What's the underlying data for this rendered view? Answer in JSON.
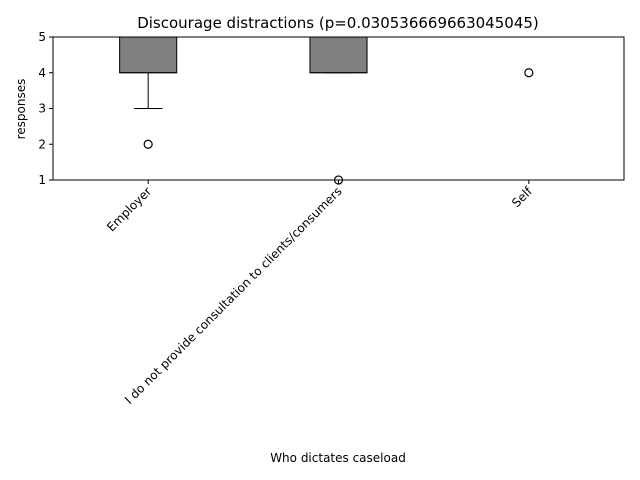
{
  "chart_data": {
    "type": "boxplot",
    "title": "Discourage distractions (p=0.030536669663045045)",
    "xlabel": "Who dictates caseload",
    "ylabel": "responses",
    "ylim": [
      1,
      5
    ],
    "yticks": [
      1,
      2,
      3,
      4,
      5
    ],
    "grid": false,
    "categories": [
      "Employer",
      "I do not provide consultation to clients/consumers",
      "Self"
    ],
    "boxes": [
      {
        "category": "Employer",
        "q1": 4,
        "median": 4,
        "q3": 5,
        "whisker_low": 3,
        "whisker_high": 5,
        "fliers": [
          2
        ]
      },
      {
        "category": "I do not provide consultation to clients/consumers",
        "q1": 4,
        "median": 4,
        "q3": 5,
        "whisker_low": 4,
        "whisker_high": 5,
        "fliers": [
          1
        ]
      },
      {
        "category": "Self",
        "q1": 5,
        "median": 5,
        "q3": 5,
        "whisker_low": 5,
        "whisker_high": 5,
        "fliers": [
          4
        ]
      }
    ],
    "colors": {
      "box_fill": "#808080",
      "box_edge": "#000000",
      "median": "#000000",
      "flier_edge": "#000000"
    }
  }
}
